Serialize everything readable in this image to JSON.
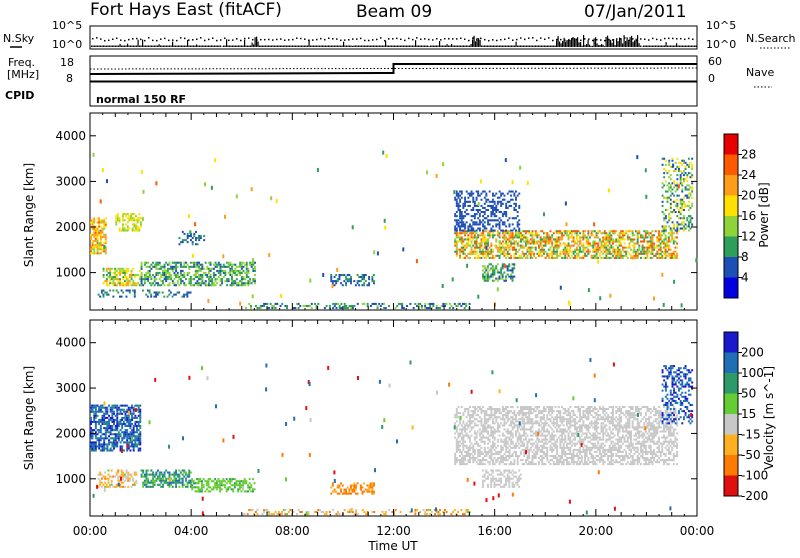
{
  "header": {
    "station": "Fort Hays East (fitACF)",
    "beam": "Beam 09",
    "date": "07/Jan/2011"
  },
  "param_panels": {
    "nsky_label": "N.Sky",
    "nsearch_label": "N.Search",
    "nave_label": "Nave",
    "freq_label": "Freq.",
    "freq_unit_label": "[MHz]",
    "cpid_label": "CPID",
    "cpid_value": "normal 150 RF",
    "noise_ticks_left": [
      "10^5",
      "10^0"
    ],
    "noise_ticks_right": [
      "10^5",
      "10^0"
    ],
    "freq_ticks_left": [
      "18",
      "8"
    ],
    "nave_ticks_right": [
      "60",
      "0"
    ]
  },
  "chart_data": [
    {
      "type": "heatmap",
      "title": "",
      "xlabel": "Time UT",
      "ylabel": "Slant Range [km]",
      "xlim_hours": [
        0,
        24
      ],
      "ylim": [
        180,
        4500
      ],
      "x_tick_labels": [
        "00:00",
        "04:00",
        "08:00",
        "12:00",
        "16:00",
        "20:00",
        "00:00"
      ],
      "y_ticks": [
        1000,
        2000,
        3000,
        4000
      ],
      "colorbar": {
        "label": "Power [dB]",
        "tick_labels": [
          "28",
          "24",
          "20",
          "16",
          "12",
          "8",
          "4"
        ],
        "colors": [
          "#e60000",
          "#ff5a00",
          "#ff9e1a",
          "#ffe000",
          "#8fd33a",
          "#2e9e5a",
          "#1e4fb4",
          "#0000e0"
        ]
      },
      "regions": [
        {
          "t0": 0.0,
          "t1": 0.6,
          "r0": 1400,
          "r1": 2200,
          "values_db": [
            14,
            26
          ],
          "density": 0.7
        },
        {
          "t0": 0.5,
          "t1": 2.0,
          "r0": 700,
          "r1": 1100,
          "values_db": [
            10,
            22
          ],
          "density": 0.6
        },
        {
          "t0": 1.0,
          "t1": 2.0,
          "r0": 1900,
          "r1": 2300,
          "values_db": [
            12,
            20
          ],
          "density": 0.5
        },
        {
          "t0": 2.0,
          "t1": 6.5,
          "r0": 700,
          "r1": 1200,
          "values_db": [
            6,
            16
          ],
          "density": 0.55
        },
        {
          "t0": 3.5,
          "t1": 4.5,
          "r0": 1600,
          "r1": 1900,
          "values_db": [
            4,
            10
          ],
          "density": 0.35
        },
        {
          "t0": 0.3,
          "t1": 4.0,
          "r0": 450,
          "r1": 600,
          "values_db": [
            4,
            10
          ],
          "density": 0.3
        },
        {
          "t0": 6.0,
          "t1": 15.0,
          "r0": 200,
          "r1": 300,
          "values_db": [
            4,
            14
          ],
          "density": 0.35
        },
        {
          "t0": 9.5,
          "t1": 11.2,
          "r0": 700,
          "r1": 950,
          "values_db": [
            4,
            12
          ],
          "density": 0.45
        },
        {
          "t0": 14.4,
          "t1": 23.2,
          "r0": 1300,
          "r1": 1900,
          "values_db": [
            8,
            28
          ],
          "density": 0.6
        },
        {
          "t0": 14.4,
          "t1": 17.0,
          "r0": 1900,
          "r1": 2800,
          "values_db": [
            4,
            8
          ],
          "density": 0.4
        },
        {
          "t0": 15.5,
          "t1": 16.8,
          "r0": 800,
          "r1": 1200,
          "values_db": [
            6,
            14
          ],
          "density": 0.55
        },
        {
          "t0": 22.6,
          "t1": 23.8,
          "r0": 1900,
          "r1": 3500,
          "values_db": [
            4,
            20
          ],
          "density": 0.35
        }
      ]
    },
    {
      "type": "heatmap",
      "title": "",
      "xlabel": "Time UT",
      "ylabel": "Slant Range [km]",
      "xlim_hours": [
        0,
        24
      ],
      "ylim": [
        180,
        4500
      ],
      "x_tick_labels": [
        "00:00",
        "04:00",
        "08:00",
        "12:00",
        "16:00",
        "20:00",
        "00:00"
      ],
      "y_ticks": [
        1000,
        2000,
        3000,
        4000
      ],
      "colorbar": {
        "label": "Velocity [m s^-1]",
        "tick_labels": [
          "200",
          "100",
          "50",
          "15",
          "-15",
          "-50",
          "-100",
          "-200"
        ],
        "colors": [
          "#1a1acc",
          "#1f6fb4",
          "#2e9a6a",
          "#66cc33",
          "#c8c8c8",
          "#ffb020",
          "#ff7a00",
          "#e01010"
        ]
      },
      "regions": [
        {
          "t0": 0.0,
          "t1": 2.0,
          "r0": 1600,
          "r1": 2600,
          "values": [
            80,
            250
          ],
          "density": 0.65
        },
        {
          "t0": 0.3,
          "t1": 1.8,
          "r0": 800,
          "r1": 1200,
          "values": [
            -60,
            20
          ],
          "density": 0.5
        },
        {
          "t0": 2.0,
          "t1": 4.0,
          "r0": 800,
          "r1": 1200,
          "values": [
            30,
            120
          ],
          "density": 0.55
        },
        {
          "t0": 4.0,
          "t1": 6.5,
          "r0": 700,
          "r1": 1000,
          "values": [
            15,
            60
          ],
          "density": 0.55
        },
        {
          "t0": 6.0,
          "t1": 15.0,
          "r0": 200,
          "r1": 300,
          "values": [
            -80,
            20
          ],
          "density": 0.3
        },
        {
          "t0": 9.5,
          "t1": 11.2,
          "r0": 650,
          "r1": 900,
          "values": [
            -100,
            -20
          ],
          "density": 0.45
        },
        {
          "t0": 14.4,
          "t1": 23.2,
          "r0": 1300,
          "r1": 2600,
          "values": [
            -14,
            14
          ],
          "density": 0.55
        },
        {
          "t0": 15.5,
          "t1": 17.0,
          "r0": 800,
          "r1": 1200,
          "values": [
            -14,
            14
          ],
          "density": 0.5
        },
        {
          "t0": 22.6,
          "t1": 23.8,
          "r0": 2200,
          "r1": 3500,
          "values": [
            100,
            250
          ],
          "density": 0.35
        }
      ]
    }
  ]
}
